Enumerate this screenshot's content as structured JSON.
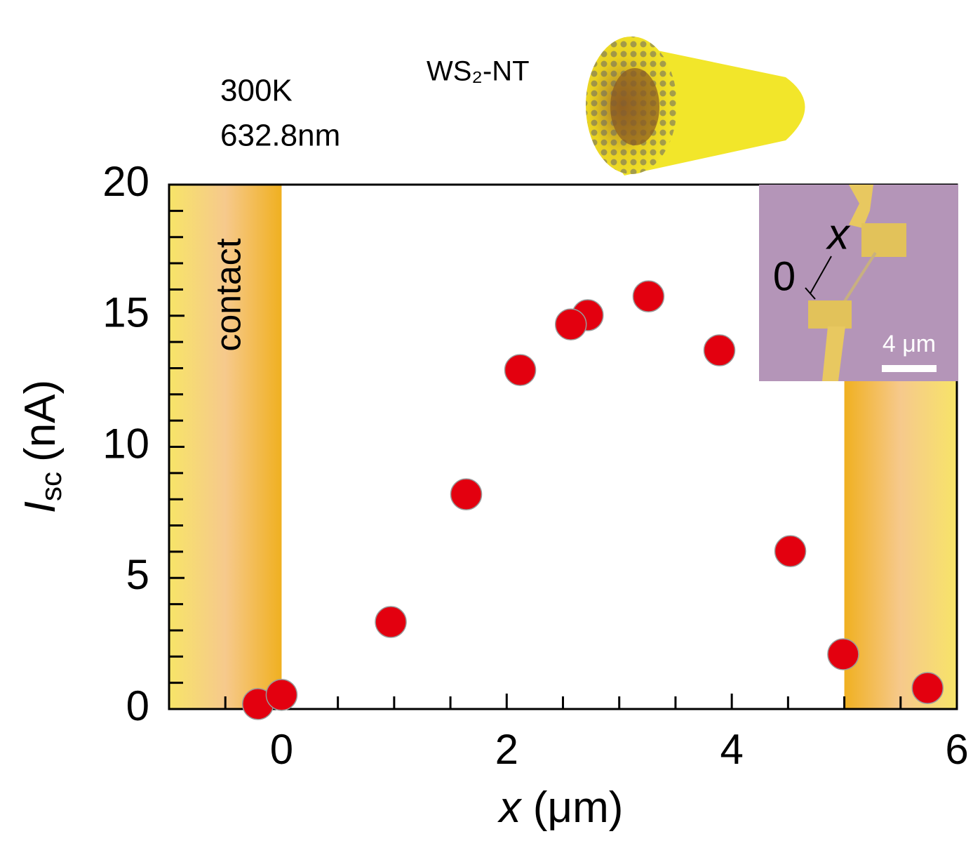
{
  "chart_data": {
    "type": "scatter",
    "annotations": [
      "300K",
      "632.8nm"
    ],
    "image_label": "WS₂-NT",
    "region_label": "contact",
    "shaded_regions": [
      [
        -1,
        0
      ],
      [
        5,
        6
      ]
    ],
    "inset_labels": {
      "axis": "x",
      "origin": "0",
      "scale": "4 μm"
    },
    "xlabel": {
      "symbol": "x",
      "unit": "(μm)"
    },
    "ylabel": {
      "symbol": "I",
      "subscript": "sc",
      "unit": "(nA)"
    },
    "xlim": [
      -1,
      6
    ],
    "ylim": [
      0,
      20
    ],
    "xticks": [
      0,
      2,
      4,
      6
    ],
    "x_minor_ticks": [
      -0.5,
      0.5,
      1,
      1.5,
      2.5,
      3,
      3.5,
      4.5,
      5,
      5.5
    ],
    "yticks": [
      0,
      5,
      10,
      15,
      20
    ],
    "y_minor_ticks": [
      1,
      2,
      3,
      4,
      6,
      7,
      8,
      9,
      11,
      12,
      13,
      14,
      16,
      17,
      18,
      19
    ],
    "color": "#e3000f",
    "x": [
      -0.21,
      0,
      0.97,
      1.64,
      2.12,
      2.72,
      2.57,
      3.26,
      3.89,
      4.52,
      4.99,
      5.74
    ],
    "values": [
      0.19,
      0.54,
      3.32,
      8.19,
      12.93,
      15.02,
      14.67,
      15.74,
      13.68,
      6.02,
      2.09,
      0.8
    ]
  }
}
